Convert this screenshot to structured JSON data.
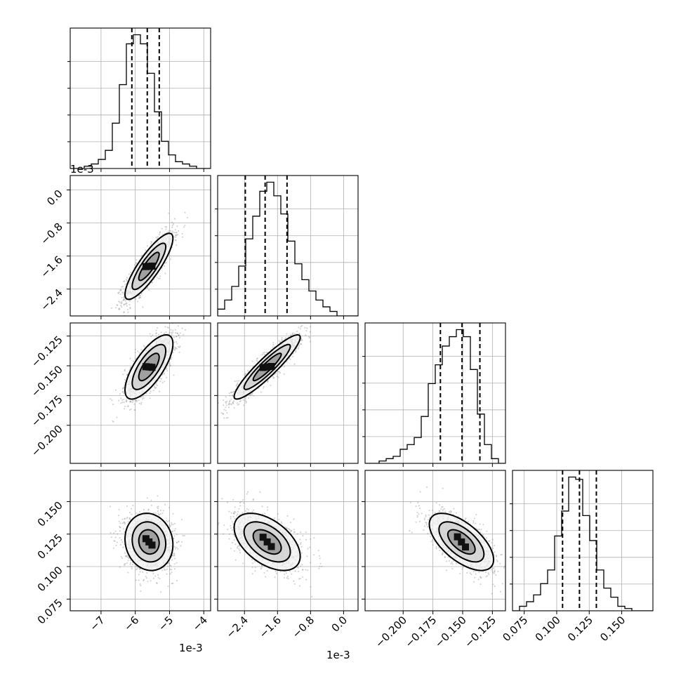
{
  "chart_data": {
    "type": "corner",
    "n_params": 4,
    "grid": true,
    "quantile_lines": "dashed",
    "params": [
      {
        "offset": "1e-3",
        "range": [
          -7.9,
          -3.8
        ],
        "ticks": [
          -7,
          -6,
          -5,
          -4
        ],
        "tick_labels": [
          "−7",
          "−6",
          "−5",
          "−4"
        ],
        "quantiles": [
          -6.1,
          -5.65,
          -5.3
        ],
        "hist": [
          0,
          0,
          1,
          2,
          4,
          8,
          20,
          37,
          55,
          59,
          55,
          42,
          25,
          12,
          6,
          3,
          2,
          1,
          0,
          0
        ]
      },
      {
        "offset": "1e-3",
        "range": [
          -3.05,
          0.35
        ],
        "ticks": [
          -2.4,
          -1.6,
          -0.8,
          0.0
        ],
        "tick_labels": [
          "−2.4",
          "−1.6",
          "−0.8",
          "0.0"
        ],
        "quantiles": [
          -2.38,
          -1.9,
          -1.37
        ],
        "hist": [
          3,
          7,
          13,
          22,
          34,
          44,
          55,
          59,
          53,
          45,
          33,
          23,
          16,
          11,
          7,
          4,
          2,
          0,
          0,
          0
        ]
      },
      {
        "offset": "",
        "range": [
          -0.232,
          -0.114
        ],
        "ticks": [
          -0.2,
          -0.175,
          -0.15,
          -0.125
        ],
        "tick_labels": [
          "−0.200",
          "−0.175",
          "−0.150",
          "−0.125"
        ],
        "quantiles": [
          -0.1687,
          -0.1505,
          -0.1355
        ],
        "hist": [
          0,
          0,
          1,
          2,
          3,
          6,
          8,
          11,
          20,
          34,
          42,
          50,
          54,
          57,
          54,
          40,
          21,
          8,
          2,
          0
        ]
      },
      {
        "offset": "",
        "range": [
          0.066,
          0.174
        ],
        "ticks": [
          0.075,
          0.1,
          0.125,
          0.15
        ],
        "tick_labels": [
          "0.075",
          "0.100",
          "0.125",
          "0.150"
        ],
        "quantiles": [
          0.1045,
          0.1175,
          0.1305
        ],
        "hist": [
          0,
          2,
          4,
          7,
          12,
          18,
          33,
          44,
          59,
          58,
          42,
          31,
          18,
          10,
          6,
          2,
          1,
          0,
          0,
          0
        ]
      }
    ],
    "correlations": [
      [
        1.0,
        0.85,
        0.72,
        -0.1
      ],
      [
        0.85,
        1.0,
        0.92,
        -0.5
      ],
      [
        0.72,
        0.92,
        1.0,
        -0.62
      ],
      [
        -0.1,
        -0.5,
        -0.62,
        1.0
      ]
    ],
    "center": [
      -5.6,
      -1.85,
      -0.151,
      0.119
    ],
    "spread": [
      0.35,
      0.4,
      0.0135,
      0.011
    ]
  }
}
